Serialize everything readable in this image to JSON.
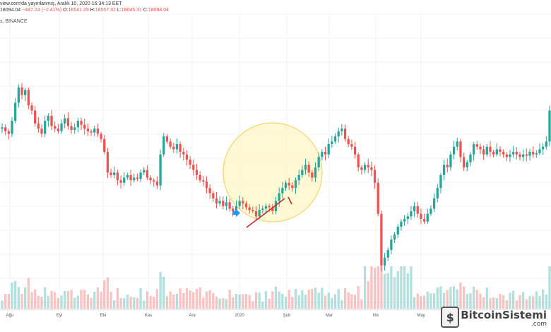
{
  "header": {
    "published": "view.com'da yayınlanmış, Aralık 10, 2020 16:34:13 EET",
    "price": "18094.04",
    "change": "−447.24 (−2.41%)",
    "o_label": "O:",
    "o_value": "18541.29",
    "h_label": "H:",
    "h_value": "18557.32",
    "l_label": "L:",
    "l_value": "18045.31",
    "c_label": "C:",
    "c_value": "18094.04",
    "symbol": "s, BINANCE"
  },
  "colors": {
    "up": "#26a69a",
    "down": "#ef5350",
    "grid": "#f0f3fa",
    "highlight_fill": "#fff3b8",
    "highlight_stroke": "#f5d66b",
    "arrow_red": "#c62828",
    "arrow_blue": "#2196f3"
  },
  "chart_data": {
    "type": "candlestick",
    "x_tick_labels": [
      "Ağu",
      "Eyl",
      "Eki",
      "Kas",
      "Ara",
      "2020",
      "Şub",
      "Mar",
      "Nis",
      "May"
    ],
    "series": [
      {
        "values": [
          10350,
          10200,
          10100,
          10600,
          11300,
          11900,
          11600,
          11800,
          11200,
          11000,
          10500,
          10300,
          10100,
          10600,
          10800,
          10400,
          10300,
          10200,
          10500,
          10700,
          10400,
          10250,
          10350,
          10600,
          10450,
          10300,
          10200,
          10150,
          10300,
          10100,
          9900,
          9400,
          8600,
          8500,
          8600,
          8300,
          8200,
          8400,
          8500,
          8300,
          8400,
          8350,
          8600,
          8700,
          8400,
          8300,
          8250,
          8100,
          9300,
          10000,
          9800,
          9600,
          9500,
          9700,
          9400,
          9300,
          9100,
          8900,
          8700,
          8500,
          8300,
          8250,
          8000,
          7800,
          7600,
          7400,
          7500,
          7300,
          7450,
          7200,
          7100,
          7300,
          7500,
          7400,
          7250,
          7150,
          7100,
          6900,
          7150,
          7200,
          7300,
          7250,
          7100,
          7500,
          7800,
          8000,
          8200,
          8100,
          8000,
          8300,
          8500,
          8700,
          8900,
          8600,
          8400,
          8800,
          9200,
          9400,
          9300,
          9700,
          9800,
          10000,
          10200,
          10300,
          9900,
          9700,
          9600,
          9300,
          8800,
          8700,
          8900,
          8800,
          8700,
          8200,
          7000,
          5000,
          5300,
          5600,
          6000,
          6200,
          6500,
          6700,
          6800,
          6900,
          7100,
          7300,
          7000,
          6800,
          6700,
          7000,
          7200,
          7600,
          8000,
          8500,
          8900,
          8800,
          9300,
          9600,
          9800,
          9200,
          8800,
          9000,
          9300,
          9700,
          9600,
          9500,
          9300,
          9600,
          9400,
          9300,
          9500,
          9400,
          9300,
          9200,
          9300,
          9400,
          9300,
          9200,
          9300,
          9250,
          9400,
          9300,
          9350,
          9500,
          9600,
          9800,
          11000
        ]
      }
    ],
    "volume_shown": true
  },
  "annotations": {
    "circle": "highlight-circle",
    "arrow_red": "red-trend-arrow",
    "arrow_blue": "blue-marker-arrow"
  },
  "logo": {
    "main": "BitcoinSistemi",
    "suffix": ".com",
    "mark": "$"
  }
}
